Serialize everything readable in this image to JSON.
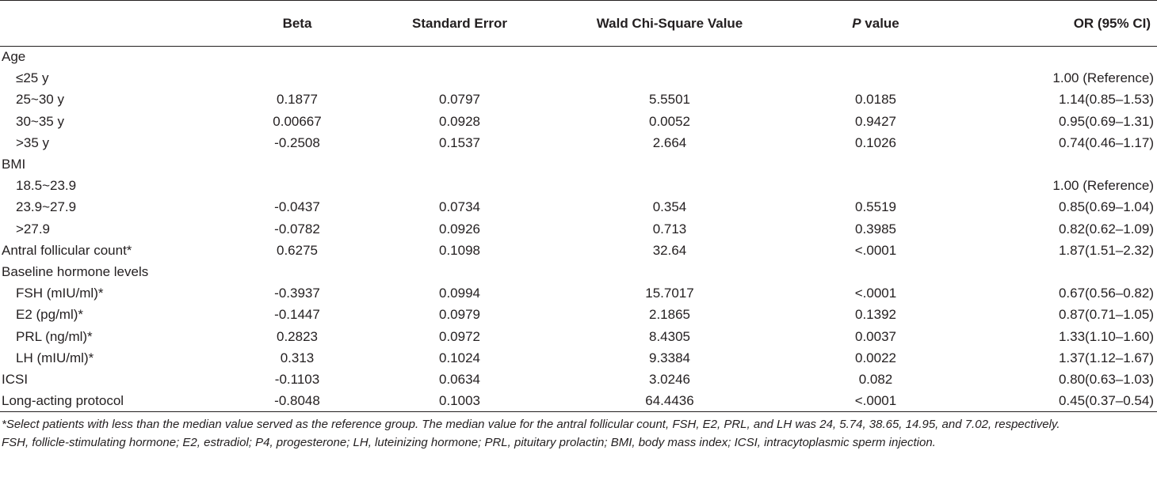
{
  "table": {
    "headers": [
      "",
      "Beta",
      "Standard Error",
      "Wald Chi-Square Value",
      "P value",
      "OR (95% CI)"
    ],
    "header_p_italic": "P",
    "header_p_rest": " value",
    "rows": [
      {
        "label": "Age",
        "indent": false,
        "beta": "",
        "se": "",
        "wald": "",
        "p": "",
        "or": ""
      },
      {
        "label": "≤25 y",
        "indent": true,
        "beta": "",
        "se": "",
        "wald": "",
        "p": "",
        "or": "1.00 (Reference)"
      },
      {
        "label": "25~30 y",
        "indent": true,
        "beta": "0.1877",
        "se": "0.0797",
        "wald": "5.5501",
        "p": "0.0185",
        "or": "1.14(0.85–1.53)"
      },
      {
        "label": "30~35 y",
        "indent": true,
        "beta": "0.00667",
        "se": "0.0928",
        "wald": "0.0052",
        "p": "0.9427",
        "or": "0.95(0.69–1.31)"
      },
      {
        "label": ">35 y",
        "indent": true,
        "beta": "-0.2508",
        "se": "0.1537",
        "wald": "2.664",
        "p": "0.1026",
        "or": "0.74(0.46–1.17)"
      },
      {
        "label": "BMI",
        "indent": false,
        "beta": "",
        "se": "",
        "wald": "",
        "p": "",
        "or": ""
      },
      {
        "label": "18.5~23.9",
        "indent": true,
        "beta": "",
        "se": "",
        "wald": "",
        "p": "",
        "or": "1.00 (Reference)"
      },
      {
        "label": "23.9~27.9",
        "indent": true,
        "beta": "-0.0437",
        "se": "0.0734",
        "wald": "0.354",
        "p": "0.5519",
        "or": "0.85(0.69–1.04)"
      },
      {
        "label": ">27.9",
        "indent": true,
        "beta": "-0.0782",
        "se": "0.0926",
        "wald": "0.713",
        "p": "0.3985",
        "or": "0.82(0.62–1.09)"
      },
      {
        "label": "Antral follicular count*",
        "indent": false,
        "beta": "0.6275",
        "se": "0.1098",
        "wald": "32.64",
        "p": "<.0001",
        "or": "1.87(1.51–2.32)"
      },
      {
        "label": "Baseline hormone levels",
        "indent": false,
        "beta": "",
        "se": "",
        "wald": "",
        "p": "",
        "or": ""
      },
      {
        "label": "FSH (mIU/ml)*",
        "indent": true,
        "beta": "-0.3937",
        "se": "0.0994",
        "wald": "15.7017",
        "p": "<.0001",
        "or": "0.67(0.56–0.82)"
      },
      {
        "label": "E2 (pg/ml)*",
        "indent": true,
        "beta": "-0.1447",
        "se": "0.0979",
        "wald": "2.1865",
        "p": "0.1392",
        "or": "0.87(0.71–1.05)"
      },
      {
        "label": "PRL (ng/ml)*",
        "indent": true,
        "beta": "0.2823",
        "se": "0.0972",
        "wald": "8.4305",
        "p": "0.0037",
        "or": "1.33(1.10–1.60)"
      },
      {
        "label": "LH (mIU/ml)*",
        "indent": true,
        "beta": "0.313",
        "se": "0.1024",
        "wald": "9.3384",
        "p": "0.0022",
        "or": "1.37(1.12–1.67)"
      },
      {
        "label": "ICSI",
        "indent": false,
        "beta": "-0.1103",
        "se": "0.0634",
        "wald": "3.0246",
        "p": "0.082",
        "or": "0.80(0.63–1.03)"
      },
      {
        "label": "Long-acting protocol",
        "indent": false,
        "beta": "-0.8048",
        "se": "0.1003",
        "wald": "64.4436",
        "p": "<.0001",
        "or": "0.45(0.37–0.54)"
      }
    ]
  },
  "footnotes": [
    "*Select patients with less than the median value served as the reference group. The median value for the antral follicular count, FSH, E2, PRL, and LH was 24, 5.74, 38.65, 14.95, and 7.02, respectively.",
    "FSH, follicle-stimulating hormone; E2, estradiol; P4, progesterone; LH, luteinizing hormone; PRL, pituitary prolactin; BMI, body mass index; ICSI, intracytoplasmic sperm injection."
  ]
}
